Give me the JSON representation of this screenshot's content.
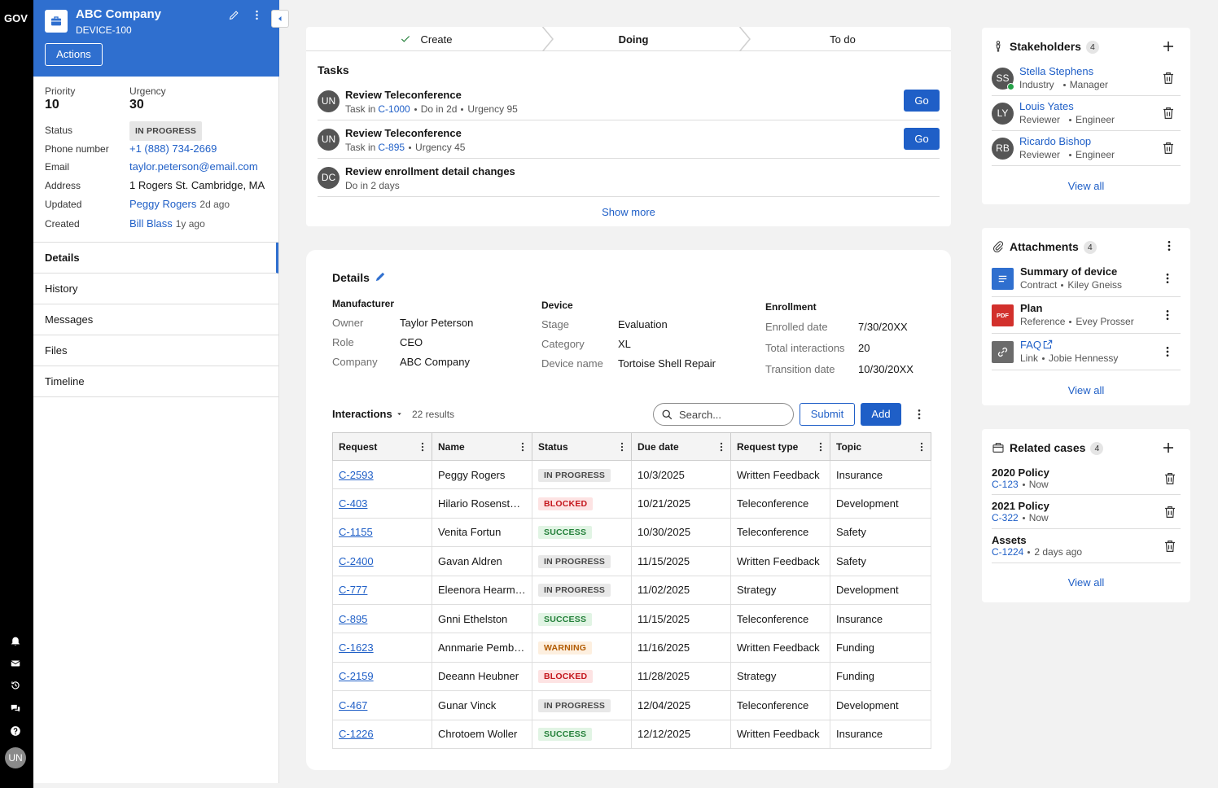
{
  "nav": {
    "brand": "GOV",
    "avatar": "UN"
  },
  "case": {
    "name": "ABC Company",
    "id": "DEVICE-100",
    "action": "Actions",
    "metrics": [
      {
        "label": "Priority",
        "value": 10
      },
      {
        "label": "Urgency",
        "value": 30
      }
    ],
    "fields": [
      {
        "label": "Status",
        "badge": "IN PROGRESS"
      },
      {
        "label": "Phone number",
        "link": "+1 (888) 734-2669"
      },
      {
        "label": "Email",
        "link": "taylor.peterson@email.com"
      },
      {
        "label": "Address",
        "text": "1 Rogers St. Cambridge, MA"
      },
      {
        "label": "Updated",
        "link": "Peggy Rogers",
        "note": "2d ago"
      },
      {
        "label": "Created",
        "link": "Bill Blass",
        "note": "1y ago"
      }
    ],
    "tabs": [
      "Details",
      "History",
      "Messages",
      "Files",
      "Timeline"
    ]
  },
  "stages": [
    "Create",
    "Doing",
    "To do"
  ],
  "tasks": {
    "title": "Tasks",
    "items": [
      {
        "avatar": "UN",
        "title": "Review Teleconference",
        "meta": [
          {
            "text": "Task in",
            "link": "C-1000"
          },
          {
            "text": "Do in 2d"
          },
          {
            "text": "Urgency 95"
          }
        ],
        "button": "Go"
      },
      {
        "avatar": "UN",
        "title": "Review Teleconference",
        "meta": [
          {
            "text": "Task in",
            "link": "C-895"
          },
          {
            "text": "Urgency 45"
          }
        ],
        "button": "Go"
      },
      {
        "avatar": "DC",
        "title": "Review enrollment detail changes",
        "meta": [
          {
            "text": "Do in 2 days"
          }
        ]
      }
    ],
    "more": "Show more"
  },
  "details": {
    "title": "Details",
    "groups": [
      {
        "heading": "Manufacturer",
        "rows": [
          [
            "Owner",
            "Taylor Peterson"
          ],
          [
            "Role",
            "CEO"
          ],
          [
            "Company",
            "ABC Company"
          ]
        ]
      },
      {
        "heading": "Device",
        "rows": [
          [
            "Stage",
            "Evaluation"
          ],
          [
            "Category",
            "XL"
          ],
          [
            "Device name",
            "Tortoise Shell Repair"
          ]
        ]
      },
      {
        "heading": "Enrollment",
        "rows": [
          [
            "Enrolled date",
            "7/30/20XX"
          ],
          [
            "Total interactions",
            20
          ],
          [
            "Transition date",
            "10/30/20XX"
          ]
        ]
      }
    ]
  },
  "interactions": {
    "title": "Interactions",
    "results": "22 results",
    "search": "Search...",
    "submit": "Submit",
    "add": "Add",
    "columns": [
      "Request",
      "Name",
      "Status",
      "Due date",
      "Request type",
      "Topic"
    ],
    "rows": [
      [
        "C-2593",
        "Peggy Rogers",
        "IN PROGRESS",
        "10/3/2025",
        "Written Feedback",
        "Insurance"
      ],
      [
        "C-403",
        "Hilario Rosenst…",
        "BLOCKED",
        "10/21/2025",
        "Teleconference",
        "Development"
      ],
      [
        "C-1155",
        "Venita Fortun",
        "SUCCESS",
        "10/30/2025",
        "Teleconference",
        "Safety"
      ],
      [
        "C-2400",
        "Gavan Aldren",
        "IN PROGRESS",
        "11/15/2025",
        "Written Feedback",
        "Safety"
      ],
      [
        "C-777",
        "Eleenora Hearm…",
        "IN PROGRESS",
        "11/02/2025",
        "Strategy",
        "Development"
      ],
      [
        "C-895",
        "Gnni Ethelston",
        "SUCCESS",
        "11/15/2025",
        "Teleconference",
        "Insurance"
      ],
      [
        "C-1623",
        "Annmarie Pemb…",
        "WARNING",
        "11/16/2025",
        "Written Feedback",
        "Funding"
      ],
      [
        "C-2159",
        "Deeann Heubner",
        "BLOCKED",
        "11/28/2025",
        "Strategy",
        "Funding"
      ],
      [
        "C-467",
        "Gunar Vinck",
        "IN PROGRESS",
        "12/04/2025",
        "Teleconference",
        "Development"
      ],
      [
        "C-1226",
        "Chrotoem Woller",
        "SUCCESS",
        "12/12/2025",
        "Written Feedback",
        "Insurance"
      ]
    ],
    "status_colors": {
      "IN PROGRESS": [
        "#e8e8e8",
        "#4a4a4a"
      ],
      "BLOCKED": [
        "#fde3e3",
        "#c4161c"
      ],
      "SUCCESS": [
        "#e1f4e4",
        "#24803a"
      ],
      "WARNING": [
        "#fdefdf",
        "#b15a00"
      ]
    }
  },
  "stakeholders": {
    "title": "Stakeholders",
    "count": 4,
    "items": [
      {
        "avatar": "SS",
        "name": "Stella Stephens",
        "role": "Industry",
        "position": "Manager",
        "online": true
      },
      {
        "avatar": "LY",
        "name": "Louis Yates",
        "role": "Reviewer",
        "position": "Engineer"
      },
      {
        "avatar": "RB",
        "name": "Ricardo Bishop",
        "role": "Reviewer",
        "position": "Engineer"
      }
    ],
    "view_all": "View all"
  },
  "attachments": {
    "title": "Attachments",
    "count": 4,
    "items": [
      {
        "icon": "doc",
        "color": "#2f6fcf",
        "title": "Summary of device",
        "type": "Contract",
        "person": "Kiley Gneiss"
      },
      {
        "icon": "pdf",
        "color": "#d2302c",
        "icon_label": "PDF",
        "title": "Plan",
        "type": "Reference",
        "person": "Evey Prosser"
      },
      {
        "icon": "link",
        "color": "#6b6b6b",
        "title": "FAQ",
        "type": "Link",
        "person": "Jobie Hennessy",
        "external": true
      }
    ],
    "view_all": "View all"
  },
  "related": {
    "title": "Related cases",
    "count": 4,
    "items": [
      {
        "title": "2020 Policy",
        "link": "C-123",
        "time": "Now"
      },
      {
        "title": "2021 Policy",
        "link": "C-322",
        "time": "Now"
      },
      {
        "title": "Assets",
        "link": "C-1224",
        "time": "2 days ago"
      }
    ],
    "view_all": "View all"
  }
}
